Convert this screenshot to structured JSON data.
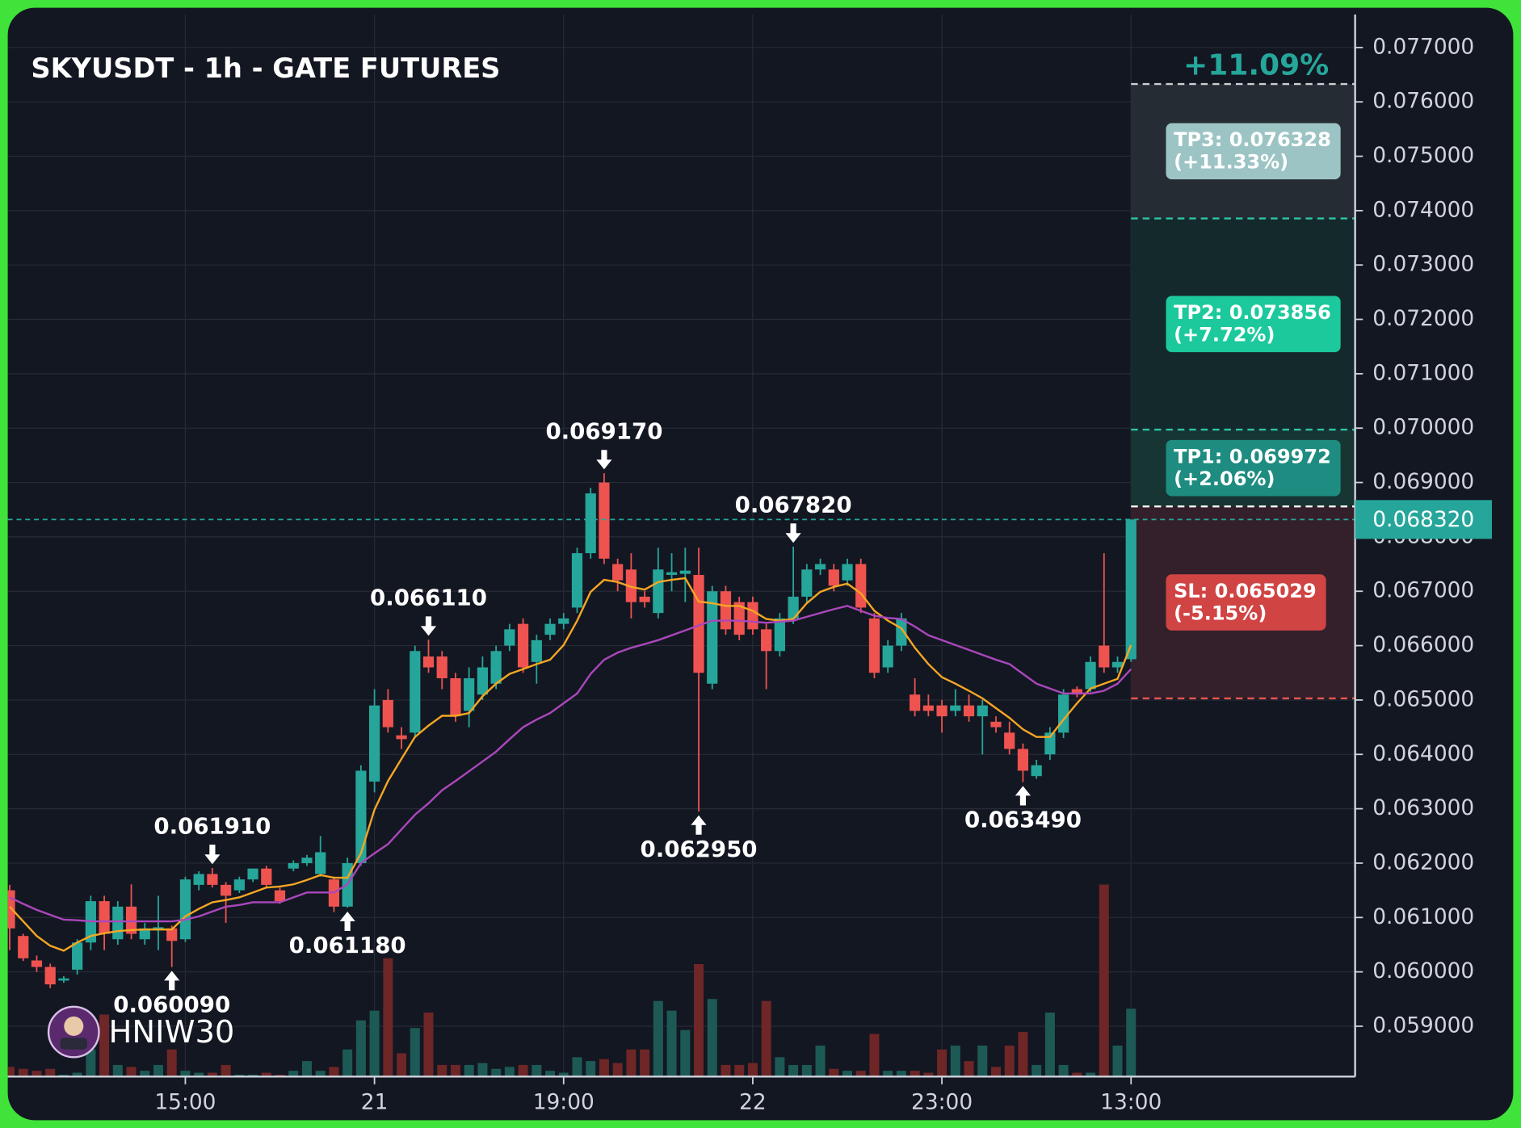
{
  "chart_data": {
    "type": "candlestick",
    "title": "SKYUSDT - 1h - GATE FUTURES",
    "categories": [
      null,
      null,
      null,
      null,
      null,
      null,
      null,
      null,
      null,
      null,
      null,
      null,
      null,
      "15:00",
      null,
      null,
      null,
      null,
      null,
      null,
      null,
      null,
      null,
      null,
      null,
      null,
      null,
      "21",
      null,
      null,
      null,
      null,
      null,
      null,
      null,
      null,
      null,
      null,
      null,
      null,
      null,
      "19:00",
      null,
      null,
      null,
      null,
      null,
      null,
      null,
      null,
      null,
      null,
      null,
      null,
      null,
      "22",
      null,
      null,
      null,
      null,
      null,
      null,
      null,
      null,
      null,
      null,
      null,
      null,
      null,
      "23:00",
      null,
      null,
      null,
      null,
      null,
      null,
      null,
      null,
      null,
      null,
      null,
      null,
      null,
      "13:00"
    ],
    "open": [
      0.0615,
      0.06066,
      0.06021,
      0.06009,
      0.05984,
      0.06004,
      0.06054,
      0.0613,
      0.0606,
      0.0612,
      0.0606,
      0.06079,
      0.0608,
      0.0606,
      0.0616,
      0.0618,
      0.0616,
      0.0615,
      0.0617,
      0.0619,
      0.0615,
      0.0619,
      0.062,
      0.0618,
      0.0617,
      0.0612,
      0.062,
      0.0635,
      0.065,
      0.06435,
      0.0644,
      0.0658,
      0.0658,
      0.0654,
      0.0648,
      0.0651,
      0.0653,
      0.066,
      0.0664,
      0.0657,
      0.0662,
      0.0664,
      0.0667,
      0.0677,
      0.069,
      0.0675,
      0.0674,
      0.0669,
      0.0666,
      0.0673,
      0.06732,
      0.0673,
      0.0653,
      0.067,
      0.0668,
      0.0668,
      0.0663,
      0.0659,
      0.0665,
      0.0669,
      0.0674,
      0.0674,
      0.0672,
      0.0675,
      0.0665,
      0.0656,
      0.066,
      0.0651,
      0.0649,
      0.0649,
      0.0648,
      0.0649,
      0.0647,
      0.0646,
      0.0644,
      0.0641,
      0.0636,
      0.064,
      0.0644,
      0.0652,
      0.0652,
      0.066,
      0.0656,
      0.06575
    ],
    "high": [
      0.0616,
      0.0607,
      0.0603,
      0.06015,
      0.05992,
      0.0606,
      0.0614,
      0.0614,
      0.0613,
      0.06161,
      0.0609,
      0.0614,
      0.06085,
      0.06175,
      0.06185,
      0.06191,
      0.06165,
      0.06175,
      0.0619,
      0.06195,
      0.06155,
      0.06205,
      0.06215,
      0.0625,
      0.06175,
      0.0621,
      0.0638,
      0.0652,
      0.0652,
      0.0645,
      0.066,
      0.06611,
      0.0659,
      0.0655,
      0.0656,
      0.0658,
      0.066,
      0.0664,
      0.0665,
      0.0662,
      0.0665,
      0.0666,
      0.0678,
      0.0689,
      0.06917,
      0.0676,
      0.0677,
      0.067,
      0.0678,
      0.0677,
      0.0678,
      0.0678,
      0.0671,
      0.0671,
      0.0669,
      0.0669,
      0.0664,
      0.0666,
      0.06782,
      0.0675,
      0.0676,
      0.0675,
      0.0676,
      0.0676,
      0.0666,
      0.0661,
      0.0666,
      0.0654,
      0.0651,
      0.065,
      0.0652,
      0.0651,
      0.065,
      0.0647,
      0.0646,
      0.0642,
      0.0639,
      0.0645,
      0.0652,
      0.06525,
      0.0658,
      0.0677,
      0.0658,
      0.06832
    ],
    "low": [
      0.0604,
      0.0602,
      0.06,
      0.0597,
      0.0598,
      0.05995,
      0.0604,
      0.0604,
      0.0605,
      0.0606,
      0.0605,
      0.0604,
      0.06009,
      0.06055,
      0.0615,
      0.06155,
      0.0609,
      0.06145,
      0.06165,
      0.06155,
      0.06125,
      0.06185,
      0.06195,
      0.06175,
      0.0611,
      0.06118,
      0.06195,
      0.0633,
      0.0644,
      0.0641,
      0.0643,
      0.0655,
      0.0652,
      0.0646,
      0.0645,
      0.065,
      0.0652,
      0.0659,
      0.0655,
      0.0653,
      0.0661,
      0.0663,
      0.0666,
      0.0676,
      0.0675,
      0.067,
      0.0665,
      0.0667,
      0.0665,
      0.067,
      0.0668,
      0.06295,
      0.0652,
      0.0662,
      0.0661,
      0.0662,
      0.0652,
      0.0658,
      0.0664,
      0.0668,
      0.0673,
      0.067,
      0.0671,
      0.0666,
      0.0654,
      0.0655,
      0.0659,
      0.0647,
      0.0647,
      0.0644,
      0.0647,
      0.0646,
      0.064,
      0.0644,
      0.064,
      0.06349,
      0.06355,
      0.0639,
      0.0643,
      0.06505,
      0.06515,
      0.0655,
      0.0655,
      0.0657
    ],
    "close": [
      0.0608,
      0.06025,
      0.06009,
      0.05977,
      0.05988,
      0.06054,
      0.0613,
      0.0607,
      0.0612,
      0.0607,
      0.0608,
      0.06082,
      0.06057,
      0.0617,
      0.0618,
      0.0616,
      0.0614,
      0.0617,
      0.0619,
      0.0616,
      0.0613,
      0.062,
      0.0621,
      0.0622,
      0.0612,
      0.062,
      0.0637,
      0.0649,
      0.0645,
      0.06428,
      0.0659,
      0.0656,
      0.0654,
      0.0647,
      0.0654,
      0.0656,
      0.0659,
      0.0663,
      0.0656,
      0.0661,
      0.0664,
      0.0665,
      0.0677,
      0.0688,
      0.0676,
      0.0672,
      0.0668,
      0.0668,
      0.0674,
      0.06735,
      0.06738,
      0.0655,
      0.067,
      0.0663,
      0.0662,
      0.0663,
      0.0659,
      0.0665,
      0.0669,
      0.0674,
      0.0675,
      0.0671,
      0.0675,
      0.0667,
      0.0655,
      0.066,
      0.0665,
      0.0648,
      0.0648,
      0.0647,
      0.0649,
      0.0647,
      0.0649,
      0.0645,
      0.0641,
      0.0637,
      0.0638,
      0.0644,
      0.0651,
      0.0651,
      0.0657,
      0.0656,
      0.0657,
      0.06832
    ],
    "volume": [
      5,
      4,
      3,
      4,
      1,
      2,
      14,
      32,
      6,
      5,
      3,
      6,
      14,
      3,
      2,
      2,
      6,
      1,
      1,
      2,
      1,
      3,
      8,
      3,
      5,
      14,
      29,
      34,
      61,
      12,
      25,
      33,
      6,
      6,
      6,
      7,
      4,
      5,
      6,
      6,
      3,
      2,
      10,
      8,
      9,
      7,
      14,
      14,
      39,
      34,
      24,
      58,
      40,
      6,
      6,
      7,
      39,
      10,
      6,
      6,
      16,
      4,
      3,
      3,
      22,
      3,
      3,
      3,
      2,
      14,
      16,
      8,
      16,
      5,
      16,
      23,
      6,
      33,
      6,
      2,
      2,
      99,
      16,
      35
    ],
    "up_color": "#26a69a",
    "down_color": "#ef5350",
    "volume_up_color": "#1d5a55",
    "volume_down_color": "#6e2626",
    "series": [
      {
        "color": "#f5a623",
        "values": [
          0.0612,
          0.06093,
          0.06066,
          0.06048,
          0.06039,
          0.06054,
          0.06066,
          0.06071,
          0.06075,
          0.06077,
          0.06078,
          0.06078,
          0.06078,
          0.06102,
          0.06116,
          0.06128,
          0.06132,
          0.06137,
          0.06146,
          0.06155,
          0.06157,
          0.06161,
          0.06169,
          0.06178,
          0.06173,
          0.06173,
          0.06218,
          0.06298,
          0.06351,
          0.06392,
          0.06432,
          0.06453,
          0.06471,
          0.06471,
          0.06476,
          0.06507,
          0.0653,
          0.06548,
          0.06557,
          0.06566,
          0.06574,
          0.06601,
          0.06646,
          0.06699,
          0.06721,
          0.06717,
          0.06708,
          0.06703,
          0.06717,
          0.06721,
          0.06724,
          0.06681,
          0.06678,
          0.06673,
          0.06673,
          0.06664,
          0.06649,
          0.06646,
          0.06649,
          0.06678,
          0.06699,
          0.06708,
          0.06714,
          0.06696,
          0.06664,
          0.06646,
          0.06632,
          0.06596,
          0.06566,
          0.06542,
          0.0653,
          0.06517,
          0.06503,
          0.06485,
          0.06467,
          0.06446,
          0.06432,
          0.06432,
          0.06464,
          0.06494,
          0.06521,
          0.0653,
          0.06539,
          0.06601
        ]
      },
      {
        "color": "#ab47bc",
        "values": [
          0.06137,
          0.06125,
          0.06114,
          0.06105,
          0.06096,
          0.06095,
          0.06093,
          0.06093,
          0.06093,
          0.06093,
          0.06093,
          0.06093,
          0.06093,
          0.06096,
          0.06102,
          0.06111,
          0.0612,
          0.06123,
          0.06128,
          0.06128,
          0.06128,
          0.06137,
          0.06146,
          0.06146,
          0.06146,
          0.06161,
          0.062,
          0.06218,
          0.06235,
          0.06262,
          0.06289,
          0.0631,
          0.06334,
          0.06351,
          0.06369,
          0.06387,
          0.06405,
          0.06428,
          0.0645,
          0.06464,
          0.06476,
          0.06494,
          0.06512,
          0.06548,
          0.06574,
          0.06587,
          0.06596,
          0.06603,
          0.0661,
          0.06619,
          0.06628,
          0.06637,
          0.06646,
          0.06646,
          0.06646,
          0.06644,
          0.06642,
          0.06644,
          0.06646,
          0.06653,
          0.0666,
          0.06667,
          0.06673,
          0.06664,
          0.06655,
          0.06651,
          0.06649,
          0.06635,
          0.06619,
          0.0661,
          0.06601,
          0.06592,
          0.06583,
          0.06574,
          0.06566,
          0.06548,
          0.0653,
          0.06521,
          0.06512,
          0.06512,
          0.06512,
          0.06517,
          0.0653,
          0.06557
        ]
      }
    ],
    "ylim": [
      0.058074,
      0.077606
    ],
    "yticks": [
      {
        "value": 0.059,
        "label": "0.059000"
      },
      {
        "value": 0.06,
        "label": "0.060000"
      },
      {
        "value": 0.061,
        "label": "0.061000"
      },
      {
        "value": 0.062,
        "label": "0.062000"
      },
      {
        "value": 0.063,
        "label": "0.063000"
      },
      {
        "value": 0.064,
        "label": "0.064000"
      },
      {
        "value": 0.065,
        "label": "0.065000"
      },
      {
        "value": 0.066,
        "label": "0.066000"
      },
      {
        "value": 0.067,
        "label": "0.067000"
      },
      {
        "value": 0.068,
        "label": "0.068000"
      },
      {
        "value": 0.069,
        "label": "0.069000"
      },
      {
        "value": 0.07,
        "label": "0.070000"
      },
      {
        "value": 0.071,
        "label": "0.071000"
      },
      {
        "value": 0.072,
        "label": "0.072000"
      },
      {
        "value": 0.073,
        "label": "0.073000"
      },
      {
        "value": 0.074,
        "label": "0.074000"
      },
      {
        "value": 0.075,
        "label": "0.075000"
      },
      {
        "value": 0.076,
        "label": "0.076000"
      },
      {
        "value": 0.077,
        "label": "0.077000"
      }
    ],
    "grid": true,
    "annotations": [
      {
        "value": 0.06917,
        "label": "0.069170",
        "side": "high"
      },
      {
        "value": 0.06782,
        "label": "0.067820",
        "side": "high"
      },
      {
        "value": 0.06611,
        "label": "0.066110",
        "side": "high"
      },
      {
        "value": 0.06191,
        "label": "0.061910",
        "side": "high"
      },
      {
        "value": 0.06009,
        "label": "0.060090",
        "side": "low"
      },
      {
        "value": 0.06118,
        "label": "0.061180",
        "side": "low"
      },
      {
        "value": 0.06295,
        "label": "0.062950",
        "side": "low"
      },
      {
        "value": 0.06349,
        "label": "0.063490",
        "side": "low"
      }
    ],
    "entry": 0.06856,
    "top_label": "+11.09%",
    "targets": [
      {
        "label": "TP3: 0.076328",
        "pct": "(+11.33%)",
        "value": 0.076328,
        "color": "#9dc4c4",
        "zone_color": "#262c34",
        "line_color": "#c8d0d0"
      },
      {
        "label": "TP2: 0.073856",
        "pct": "(+7.72%)",
        "value": 0.073856,
        "color": "#1cc99c",
        "zone_color": "#14292b",
        "line_color": "#2ec4a6"
      },
      {
        "label": "TP1: 0.069972",
        "pct": "(+2.06%)",
        "value": 0.069972,
        "color": "#1e8c80",
        "zone_color": "#163533",
        "line_color": "#2ec4a6"
      }
    ],
    "stop": {
      "label": "SL: 0.065029",
      "pct": "(-5.15%)",
      "value": 0.065029,
      "color": "#d04444",
      "zone_color": "#33202a",
      "line_color": "#ef5350"
    },
    "last_price": {
      "value": 0.06832,
      "label": "0.068320",
      "color": "#26a69a"
    },
    "watermark": "HNIW30"
  }
}
